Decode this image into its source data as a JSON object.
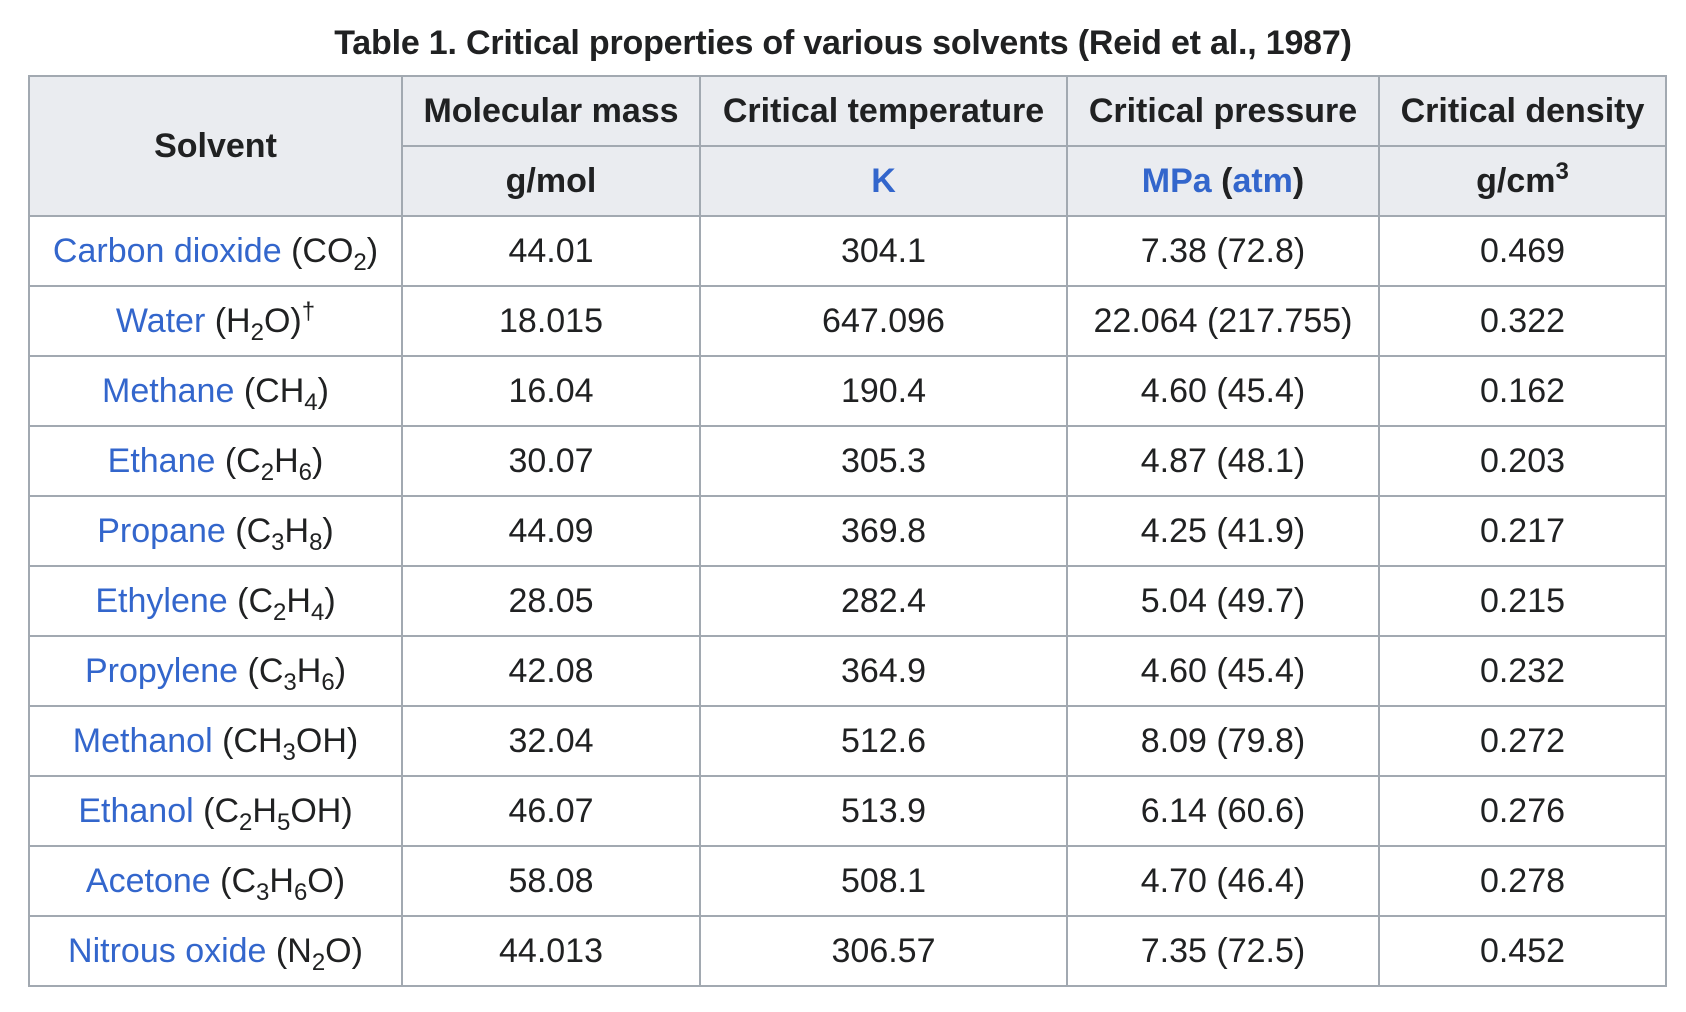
{
  "caption": "Table 1. Critical properties of various solvents (Reid et al., 1987)",
  "link_color": "#3366cc",
  "header": {
    "solvent": "Solvent",
    "columns": [
      {
        "label": "Molecular mass",
        "unit": "g/mol"
      },
      {
        "label": "Critical temperature",
        "unit": "K"
      },
      {
        "label": "Critical pressure",
        "unit_link1": "MPa",
        "unit_text": " (",
        "unit_link2": "atm",
        "unit_close": ")"
      },
      {
        "label": "Critical density",
        "unit": "g/cm",
        "unit_sup": "3"
      }
    ]
  },
  "rows": [
    {
      "name": "Carbon dioxide",
      "formula": [
        [
          "(CO",
          ""
        ],
        [
          "2",
          "sub"
        ],
        [
          ")",
          ""
        ]
      ],
      "mass": "44.01",
      "temp": "304.1",
      "pressure": "7.38 (72.8)",
      "density": "0.469"
    },
    {
      "name": "Water",
      "formula": [
        [
          "(H",
          ""
        ],
        [
          "2",
          "sub"
        ],
        [
          "O)",
          ""
        ],
        [
          "†",
          "sup"
        ]
      ],
      "mass": "18.015",
      "temp": "647.096",
      "pressure": "22.064 (217.755)",
      "density": "0.322"
    },
    {
      "name": "Methane",
      "formula": [
        [
          "(CH",
          ""
        ],
        [
          "4",
          "sub"
        ],
        [
          ")",
          ""
        ]
      ],
      "mass": "16.04",
      "temp": "190.4",
      "pressure": "4.60 (45.4)",
      "density": "0.162"
    },
    {
      "name": "Ethane",
      "formula": [
        [
          "(C",
          ""
        ],
        [
          "2",
          "sub"
        ],
        [
          "H",
          ""
        ],
        [
          "6",
          "sub"
        ],
        [
          ")",
          ""
        ]
      ],
      "mass": "30.07",
      "temp": "305.3",
      "pressure": "4.87 (48.1)",
      "density": "0.203"
    },
    {
      "name": "Propane",
      "formula": [
        [
          "(C",
          ""
        ],
        [
          "3",
          "sub"
        ],
        [
          "H",
          ""
        ],
        [
          "8",
          "sub"
        ],
        [
          ")",
          ""
        ]
      ],
      "mass": "44.09",
      "temp": "369.8",
      "pressure": "4.25 (41.9)",
      "density": "0.217"
    },
    {
      "name": "Ethylene",
      "formula": [
        [
          "(C",
          ""
        ],
        [
          "2",
          "sub"
        ],
        [
          "H",
          ""
        ],
        [
          "4",
          "sub"
        ],
        [
          ")",
          ""
        ]
      ],
      "mass": "28.05",
      "temp": "282.4",
      "pressure": "5.04 (49.7)",
      "density": "0.215"
    },
    {
      "name": "Propylene",
      "formula": [
        [
          "(C",
          ""
        ],
        [
          "3",
          "sub"
        ],
        [
          "H",
          ""
        ],
        [
          "6",
          "sub"
        ],
        [
          ")",
          ""
        ]
      ],
      "mass": "42.08",
      "temp": "364.9",
      "pressure": "4.60 (45.4)",
      "density": "0.232"
    },
    {
      "name": "Methanol",
      "formula": [
        [
          "(CH",
          ""
        ],
        [
          "3",
          "sub"
        ],
        [
          "OH)",
          ""
        ]
      ],
      "mass": "32.04",
      "temp": "512.6",
      "pressure": "8.09 (79.8)",
      "density": "0.272"
    },
    {
      "name": "Ethanol",
      "formula": [
        [
          "(C",
          ""
        ],
        [
          "2",
          "sub"
        ],
        [
          "H",
          ""
        ],
        [
          "5",
          "sub"
        ],
        [
          "OH)",
          ""
        ]
      ],
      "mass": "46.07",
      "temp": "513.9",
      "pressure": "6.14 (60.6)",
      "density": "0.276"
    },
    {
      "name": "Acetone",
      "formula": [
        [
          "(C",
          ""
        ],
        [
          "3",
          "sub"
        ],
        [
          "H",
          ""
        ],
        [
          "6",
          "sub"
        ],
        [
          "O)",
          ""
        ]
      ],
      "mass": "58.08",
      "temp": "508.1",
      "pressure": "4.70 (46.4)",
      "density": "0.278"
    },
    {
      "name": "Nitrous oxide",
      "formula": [
        [
          "(N",
          ""
        ],
        [
          "2",
          "sub"
        ],
        [
          "O)",
          ""
        ]
      ],
      "mass": "44.013",
      "temp": "306.57",
      "pressure": "7.35 (72.5)",
      "density": "0.452"
    }
  ]
}
